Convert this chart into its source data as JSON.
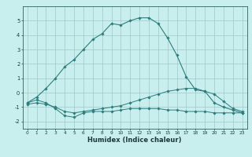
{
  "xlabel": "Humidex (Indice chaleur)",
  "x_values": [
    0,
    1,
    2,
    3,
    4,
    5,
    6,
    7,
    8,
    9,
    10,
    11,
    12,
    13,
    14,
    15,
    16,
    17,
    18,
    19,
    20,
    21,
    22,
    23
  ],
  "line1": [
    -0.7,
    -0.5,
    -0.7,
    -1.1,
    -1.6,
    -1.7,
    -1.4,
    -1.3,
    -1.3,
    -1.3,
    -1.2,
    -1.1,
    -1.1,
    -1.1,
    -1.1,
    -1.2,
    -1.2,
    -1.3,
    -1.3,
    -1.3,
    -1.4,
    -1.4,
    -1.4,
    -1.4
  ],
  "line2": [
    -0.8,
    -0.7,
    -0.8,
    -1.0,
    -1.3,
    -1.4,
    -1.3,
    -1.2,
    -1.1,
    -1.0,
    -0.9,
    -0.7,
    -0.5,
    -0.3,
    -0.1,
    0.1,
    0.2,
    0.3,
    0.3,
    0.1,
    -0.1,
    -0.6,
    -1.1,
    -1.3
  ],
  "line3": [
    -0.7,
    -0.3,
    0.3,
    1.0,
    1.8,
    2.3,
    3.0,
    3.7,
    4.1,
    4.8,
    4.7,
    5.0,
    5.2,
    5.2,
    4.8,
    3.8,
    2.6,
    1.1,
    0.2,
    0.1,
    -0.7,
    -1.0,
    -1.2,
    -1.4
  ],
  "line_color": "#2d7d7d",
  "bg_color": "#c8eeee",
  "grid_color": "#a0c8c8",
  "ylim": [
    -2.5,
    6.0
  ],
  "yticks": [
    -2,
    -1,
    0,
    1,
    2,
    3,
    4,
    5
  ],
  "xlim": [
    -0.5,
    23.5
  ]
}
